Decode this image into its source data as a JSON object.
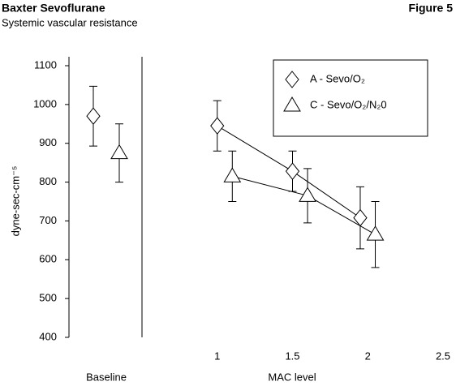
{
  "chart_data": {
    "type": "scatter",
    "title": "Baxter Sevoflurane",
    "subtitle": "Systemic vascular resistance",
    "figure_label": "Figure 5",
    "y_label": "dyne-sec-cm⁻⁵",
    "x_label": "MAC level",
    "baseline_label": "Baseline",
    "ylim": [
      400,
      1100
    ],
    "yticks": [
      400,
      500,
      600,
      700,
      800,
      900,
      1000,
      1100
    ],
    "xlim": [
      0.5,
      2.5
    ],
    "xticks": [
      1,
      1.5,
      2,
      2.5
    ],
    "color": "#000000",
    "series": [
      {
        "name": "A - Sevo/O₂",
        "marker": "diamond",
        "baseline": 970,
        "baseline_error": 77,
        "x": [
          1,
          1.5,
          1.95
        ],
        "values": [
          945,
          828,
          708
        ],
        "errors": [
          65,
          52,
          80
        ]
      },
      {
        "name": "C - Sevo/O₂/N₂0",
        "marker": "triangle",
        "baseline": 875,
        "baseline_error": 75,
        "x": [
          1.1,
          1.6,
          2.05
        ],
        "values": [
          815,
          765,
          665
        ],
        "errors": [
          65,
          70,
          85
        ]
      }
    ]
  }
}
